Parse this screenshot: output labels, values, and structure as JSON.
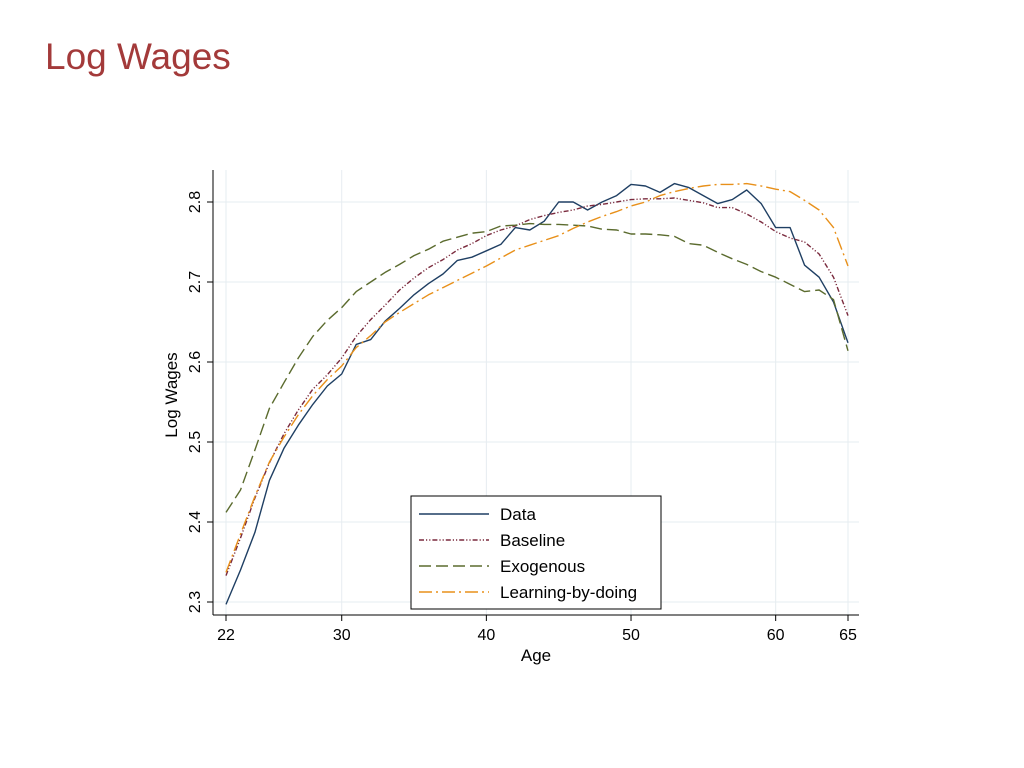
{
  "slide": {
    "title": "Log Wages"
  },
  "chart_data": {
    "type": "line",
    "title": "",
    "xlabel": "Age",
    "ylabel": "Log Wages",
    "xlim": [
      22,
      65
    ],
    "ylim": [
      2.3,
      2.8
    ],
    "xticks": [
      22,
      30,
      40,
      50,
      60,
      65
    ],
    "yticks": [
      2.3,
      2.4,
      2.5,
      2.6,
      2.7,
      2.8
    ],
    "grid": true,
    "legend": "bottom-center",
    "series": [
      {
        "name": "Data",
        "color": "#1f3f63",
        "dash": "solid",
        "x": [
          22,
          23,
          24,
          25,
          26,
          27,
          28,
          29,
          30,
          31,
          32,
          33,
          34,
          35,
          36,
          37,
          38,
          39,
          40,
          41,
          42,
          43,
          44,
          45,
          46,
          47,
          48,
          49,
          50,
          51,
          52,
          53,
          54,
          55,
          56,
          57,
          58,
          59,
          60,
          61,
          62,
          63,
          64,
          65
        ],
        "y": [
          2.297,
          2.34,
          2.387,
          2.452,
          2.492,
          2.521,
          2.547,
          2.57,
          2.585,
          2.622,
          2.628,
          2.651,
          2.667,
          2.684,
          2.698,
          2.71,
          2.727,
          2.731,
          2.739,
          2.747,
          2.768,
          2.765,
          2.776,
          2.8,
          2.8,
          2.79,
          2.8,
          2.808,
          2.822,
          2.82,
          2.812,
          2.823,
          2.818,
          2.808,
          2.798,
          2.803,
          2.815,
          2.798,
          2.768,
          2.768,
          2.721,
          2.706,
          2.675,
          2.624
        ]
      },
      {
        "name": "Baseline",
        "color": "#7a2a3d",
        "dash": "dash-dot-dot",
        "x": [
          22,
          23,
          24,
          25,
          26,
          27,
          28,
          29,
          30,
          31,
          32,
          33,
          34,
          35,
          36,
          37,
          38,
          39,
          40,
          41,
          42,
          43,
          44,
          45,
          46,
          47,
          48,
          49,
          50,
          51,
          52,
          53,
          54,
          55,
          56,
          57,
          58,
          59,
          60,
          61,
          62,
          63,
          64,
          65
        ],
        "y": [
          2.333,
          2.38,
          2.43,
          2.474,
          2.51,
          2.54,
          2.566,
          2.584,
          2.605,
          2.632,
          2.653,
          2.671,
          2.69,
          2.705,
          2.718,
          2.728,
          2.74,
          2.748,
          2.758,
          2.765,
          2.77,
          2.778,
          2.783,
          2.787,
          2.79,
          2.795,
          2.797,
          2.8,
          2.803,
          2.804,
          2.804,
          2.805,
          2.802,
          2.799,
          2.793,
          2.793,
          2.785,
          2.775,
          2.763,
          2.755,
          2.75,
          2.735,
          2.706,
          2.658
        ]
      },
      {
        "name": "Exogenous",
        "color": "#5b6b2e",
        "dash": "long-dash",
        "x": [
          22,
          23,
          24,
          25,
          26,
          27,
          28,
          29,
          30,
          31,
          32,
          33,
          34,
          35,
          36,
          37,
          38,
          39,
          40,
          41,
          42,
          43,
          44,
          45,
          46,
          47,
          48,
          49,
          50,
          51,
          52,
          53,
          54,
          55,
          56,
          57,
          58,
          59,
          60,
          61,
          62,
          63,
          64,
          65
        ],
        "y": [
          2.412,
          2.44,
          2.49,
          2.542,
          2.574,
          2.605,
          2.632,
          2.652,
          2.668,
          2.688,
          2.7,
          2.712,
          2.722,
          2.733,
          2.741,
          2.751,
          2.756,
          2.761,
          2.763,
          2.77,
          2.771,
          2.773,
          2.772,
          2.772,
          2.771,
          2.77,
          2.766,
          2.765,
          2.76,
          2.76,
          2.759,
          2.757,
          2.748,
          2.746,
          2.737,
          2.729,
          2.722,
          2.713,
          2.706,
          2.697,
          2.688,
          2.69,
          2.678,
          2.614
        ]
      },
      {
        "name": "Learning-by-doing",
        "color": "#e8901a",
        "dash": "long-dash-dot",
        "x": [
          22,
          23,
          24,
          25,
          26,
          27,
          28,
          29,
          30,
          31,
          32,
          33,
          34,
          35,
          36,
          37,
          38,
          39,
          40,
          41,
          42,
          43,
          44,
          45,
          46,
          47,
          48,
          49,
          50,
          51,
          52,
          53,
          54,
          55,
          56,
          57,
          58,
          59,
          60,
          61,
          62,
          63,
          64,
          65
        ],
        "y": [
          2.337,
          2.385,
          2.432,
          2.475,
          2.506,
          2.534,
          2.558,
          2.578,
          2.595,
          2.618,
          2.633,
          2.65,
          2.662,
          2.673,
          2.684,
          2.693,
          2.702,
          2.711,
          2.72,
          2.73,
          2.74,
          2.746,
          2.752,
          2.758,
          2.767,
          2.775,
          2.782,
          2.788,
          2.795,
          2.8,
          2.808,
          2.813,
          2.817,
          2.82,
          2.822,
          2.822,
          2.823,
          2.82,
          2.816,
          2.813,
          2.802,
          2.79,
          2.768,
          2.72
        ]
      }
    ]
  }
}
